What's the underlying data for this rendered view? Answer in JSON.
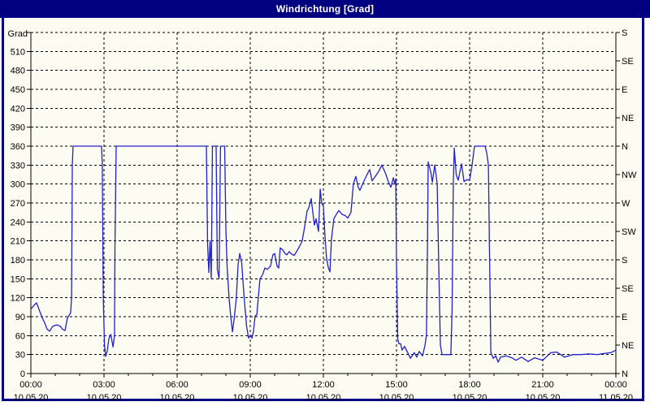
{
  "window": {
    "title": "Windrichtung [Grad]"
  },
  "colors": {
    "titlebar_bg": "#000080",
    "titlebar_text": "#ffffff",
    "frame_border": "#000080",
    "page_bg": "#fcfcf2",
    "line": "#2020cc",
    "axis": "#000000",
    "grid": "#000000"
  },
  "chart_data": {
    "type": "line",
    "title": "Windrichtung [Grad]",
    "ylabel_left": "Grad",
    "legend": "none",
    "grid": {
      "style": "dashed",
      "h_step_deg": 30,
      "v_step_hours": 3
    },
    "y_left": {
      "label": "Grad",
      "min": 0,
      "max": 540,
      "tick_step": 30,
      "tick_labels": [
        "0",
        "30",
        "60",
        "90",
        "120",
        "150",
        "180",
        "210",
        "240",
        "270",
        "300",
        "330",
        "360",
        "390",
        "420",
        "450",
        "480",
        "510"
      ]
    },
    "y_right": {
      "ticks": [
        {
          "value": 0,
          "label": "N"
        },
        {
          "value": 45,
          "label": "NE"
        },
        {
          "value": 90,
          "label": "E"
        },
        {
          "value": 135,
          "label": "SE"
        },
        {
          "value": 180,
          "label": "S"
        },
        {
          "value": 225,
          "label": "SW"
        },
        {
          "value": 270,
          "label": "W"
        },
        {
          "value": 315,
          "label": "NW"
        },
        {
          "value": 360,
          "label": "N"
        },
        {
          "value": 405,
          "label": "NE"
        },
        {
          "value": 450,
          "label": "E"
        },
        {
          "value": 495,
          "label": "SE"
        },
        {
          "value": 540,
          "label": "S"
        }
      ]
    },
    "x_axis": {
      "range_hours": [
        0,
        24
      ],
      "minor_tick_every_hours": 1,
      "major_ticks": [
        {
          "t": 0,
          "time": "00:00",
          "date": "10.05.20"
        },
        {
          "t": 3,
          "time": "03:00",
          "date": "10.05.20"
        },
        {
          "t": 6,
          "time": "06:00",
          "date": "10.05.20"
        },
        {
          "t": 9,
          "time": "09:00",
          "date": "10.05.20"
        },
        {
          "t": 12,
          "time": "12:00",
          "date": "10.05.20"
        },
        {
          "t": 15,
          "time": "15:00",
          "date": "10.05.20"
        },
        {
          "t": 18,
          "time": "18:00",
          "date": "10.05.20"
        },
        {
          "t": 21,
          "time": "21:00",
          "date": "10.05.20"
        },
        {
          "t": 24,
          "time": "00:00",
          "date": "11.05.20"
        }
      ]
    },
    "series": [
      {
        "name": "Windrichtung",
        "unit": "Grad",
        "color": "#2020cc",
        "points": [
          [
            0,
            102
          ],
          [
            0.13,
            108
          ],
          [
            0.23,
            112
          ],
          [
            0.33,
            102
          ],
          [
            0.47,
            88
          ],
          [
            0.57,
            80
          ],
          [
            0.67,
            70
          ],
          [
            0.77,
            67
          ],
          [
            0.9,
            75
          ],
          [
            1.07,
            77
          ],
          [
            1.2,
            75
          ],
          [
            1.3,
            70
          ],
          [
            1.4,
            68
          ],
          [
            1.5,
            88
          ],
          [
            1.58,
            93
          ],
          [
            1.63,
            96
          ],
          [
            1.67,
            120
          ],
          [
            1.7,
            330
          ],
          [
            1.73,
            360
          ],
          [
            2.9,
            360
          ],
          [
            2.93,
            330
          ],
          [
            2.97,
            120
          ],
          [
            3.02,
            45
          ],
          [
            3.07,
            27
          ],
          [
            3.13,
            35
          ],
          [
            3.2,
            55
          ],
          [
            3.28,
            62
          ],
          [
            3.37,
            42
          ],
          [
            3.43,
            60
          ],
          [
            3.45,
            200
          ],
          [
            3.5,
            360
          ],
          [
            7.2,
            360
          ],
          [
            7.25,
            205
          ],
          [
            7.3,
            160
          ],
          [
            7.35,
            210
          ],
          [
            7.4,
            150
          ],
          [
            7.45,
            360
          ],
          [
            7.6,
            360
          ],
          [
            7.65,
            165
          ],
          [
            7.72,
            150
          ],
          [
            7.78,
            360
          ],
          [
            7.95,
            360
          ],
          [
            8.0,
            230
          ],
          [
            8.05,
            170
          ],
          [
            8.13,
            120
          ],
          [
            8.2,
            90
          ],
          [
            8.27,
            66
          ],
          [
            8.35,
            90
          ],
          [
            8.43,
            120
          ],
          [
            8.5,
            172
          ],
          [
            8.57,
            190
          ],
          [
            8.65,
            175
          ],
          [
            8.75,
            120
          ],
          [
            8.85,
            75
          ],
          [
            8.93,
            56
          ],
          [
            9.0,
            60
          ],
          [
            9.07,
            56
          ],
          [
            9.13,
            66
          ],
          [
            9.2,
            91
          ],
          [
            9.27,
            93
          ],
          [
            9.33,
            120
          ],
          [
            9.4,
            150
          ],
          [
            9.5,
            156
          ],
          [
            9.6,
            167
          ],
          [
            9.7,
            165
          ],
          [
            9.83,
            170
          ],
          [
            9.93,
            188
          ],
          [
            10.0,
            190
          ],
          [
            10.1,
            170
          ],
          [
            10.17,
            167
          ],
          [
            10.23,
            199
          ],
          [
            10.33,
            196
          ],
          [
            10.43,
            190
          ],
          [
            10.5,
            188
          ],
          [
            10.6,
            193
          ],
          [
            10.7,
            189
          ],
          [
            10.8,
            187
          ],
          [
            10.9,
            193
          ],
          [
            11.0,
            200
          ],
          [
            11.07,
            205
          ],
          [
            11.13,
            210
          ],
          [
            11.23,
            232
          ],
          [
            11.33,
            257
          ],
          [
            11.4,
            262
          ],
          [
            11.5,
            277
          ],
          [
            11.63,
            235
          ],
          [
            11.7,
            245
          ],
          [
            11.8,
            225
          ],
          [
            11.87,
            292
          ],
          [
            11.93,
            270
          ],
          [
            12.0,
            265
          ],
          [
            12.07,
            215
          ],
          [
            12.13,
            183
          ],
          [
            12.2,
            168
          ],
          [
            12.27,
            161
          ],
          [
            12.33,
            212
          ],
          [
            12.43,
            245
          ],
          [
            12.5,
            250
          ],
          [
            12.63,
            258
          ],
          [
            12.77,
            252
          ],
          [
            12.9,
            250
          ],
          [
            13.0,
            246
          ],
          [
            13.13,
            255
          ],
          [
            13.23,
            300
          ],
          [
            13.33,
            312
          ],
          [
            13.43,
            295
          ],
          [
            13.5,
            290
          ],
          [
            13.63,
            302
          ],
          [
            13.73,
            310
          ],
          [
            13.83,
            318
          ],
          [
            13.9,
            323
          ],
          [
            14.0,
            305
          ],
          [
            14.13,
            312
          ],
          [
            14.27,
            320
          ],
          [
            14.4,
            330
          ],
          [
            14.57,
            315
          ],
          [
            14.67,
            303
          ],
          [
            14.77,
            295
          ],
          [
            14.87,
            310
          ],
          [
            14.93,
            300
          ],
          [
            14.97,
            308
          ],
          [
            15.0,
            178
          ],
          [
            15.05,
            55
          ],
          [
            15.1,
            47
          ],
          [
            15.17,
            47
          ],
          [
            15.23,
            37
          ],
          [
            15.33,
            43
          ],
          [
            15.5,
            30
          ],
          [
            15.57,
            24
          ],
          [
            15.73,
            33
          ],
          [
            15.83,
            26
          ],
          [
            15.93,
            35
          ],
          [
            16.07,
            28
          ],
          [
            16.17,
            45
          ],
          [
            16.23,
            62
          ],
          [
            16.27,
            200
          ],
          [
            16.3,
            335
          ],
          [
            16.4,
            320
          ],
          [
            16.47,
            303
          ],
          [
            16.57,
            330
          ],
          [
            16.67,
            300
          ],
          [
            16.73,
            177
          ],
          [
            16.8,
            45
          ],
          [
            16.87,
            30
          ],
          [
            17.23,
            30
          ],
          [
            17.28,
            100
          ],
          [
            17.33,
            300
          ],
          [
            17.37,
            357
          ],
          [
            17.45,
            315
          ],
          [
            17.53,
            306
          ],
          [
            17.67,
            332
          ],
          [
            17.77,
            304
          ],
          [
            17.9,
            307
          ],
          [
            18.0,
            306
          ],
          [
            18.1,
            330
          ],
          [
            18.2,
            360
          ],
          [
            18.63,
            360
          ],
          [
            18.7,
            350
          ],
          [
            18.77,
            330
          ],
          [
            18.83,
            150
          ],
          [
            18.87,
            33
          ],
          [
            18.97,
            24
          ],
          [
            19.07,
            28
          ],
          [
            19.17,
            18
          ],
          [
            19.27,
            26
          ],
          [
            19.5,
            28
          ],
          [
            19.73,
            25
          ],
          [
            19.9,
            21
          ],
          [
            20.13,
            26
          ],
          [
            20.4,
            19
          ],
          [
            20.67,
            25
          ],
          [
            21.0,
            21
          ],
          [
            21.33,
            33
          ],
          [
            21.57,
            34
          ],
          [
            21.9,
            26
          ],
          [
            22.23,
            30
          ],
          [
            22.57,
            30
          ],
          [
            22.9,
            31
          ],
          [
            23.23,
            30
          ],
          [
            23.57,
            32
          ],
          [
            23.8,
            33
          ],
          [
            24.0,
            37
          ]
        ]
      }
    ]
  }
}
